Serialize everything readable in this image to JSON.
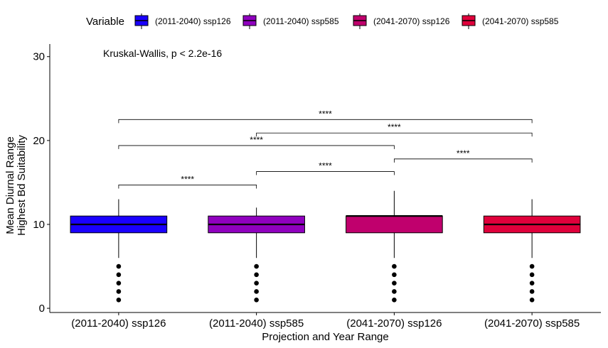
{
  "chart_data": {
    "type": "box",
    "xlabel": "Projection and Year Range",
    "ylabel": [
      "Mean Diurnal Range",
      "Highest Bd Suitability"
    ],
    "ylim": [
      -0.5,
      31.5
    ],
    "yticks": [
      0,
      10,
      20,
      30
    ],
    "legend": {
      "title": "Variable",
      "position": "top"
    },
    "annotation": "Kruskal-Wallis, p < 2.2e-16",
    "categories": [
      "(2011-2040) ssp126",
      "(2011-2040) ssp585",
      "(2041-2070) ssp126",
      "(2041-2070) ssp585"
    ],
    "boxes": [
      {
        "name": "(2011-2040) ssp126",
        "color": "#1a00ff",
        "q1": 9,
        "median": 10,
        "q3": 11,
        "whisker_low": 6,
        "whisker_high": 13,
        "outliers": [
          1,
          2,
          3,
          4,
          5
        ]
      },
      {
        "name": "(2011-2040) ssp585",
        "color": "#9000bf",
        "q1": 9,
        "median": 10,
        "q3": 11,
        "whisker_low": 6,
        "whisker_high": 12,
        "outliers": [
          1,
          2,
          3,
          4,
          5
        ]
      },
      {
        "name": "(2041-2070) ssp126",
        "color": "#c0006d",
        "q1": 9,
        "median": 11,
        "q3": 11,
        "whisker_low": 6,
        "whisker_high": 14,
        "outliers": [
          1,
          2,
          3,
          4,
          5
        ]
      },
      {
        "name": "(2041-2070) ssp585",
        "color": "#e0003b",
        "q1": 9,
        "median": 10,
        "q3": 11,
        "whisker_low": 6,
        "whisker_high": 13,
        "outliers": [
          1,
          2,
          3,
          4,
          5
        ]
      }
    ],
    "comparisons": [
      {
        "from": 0,
        "to": 1,
        "y": 14.7,
        "label": "****"
      },
      {
        "from": 1,
        "to": 2,
        "y": 16.3,
        "label": "****"
      },
      {
        "from": 2,
        "to": 3,
        "y": 17.8,
        "label": "****"
      },
      {
        "from": 0,
        "to": 2,
        "y": 19.4,
        "label": "****"
      },
      {
        "from": 1,
        "to": 3,
        "y": 20.9,
        "label": "****"
      },
      {
        "from": 0,
        "to": 3,
        "y": 22.5,
        "label": "****"
      }
    ]
  }
}
